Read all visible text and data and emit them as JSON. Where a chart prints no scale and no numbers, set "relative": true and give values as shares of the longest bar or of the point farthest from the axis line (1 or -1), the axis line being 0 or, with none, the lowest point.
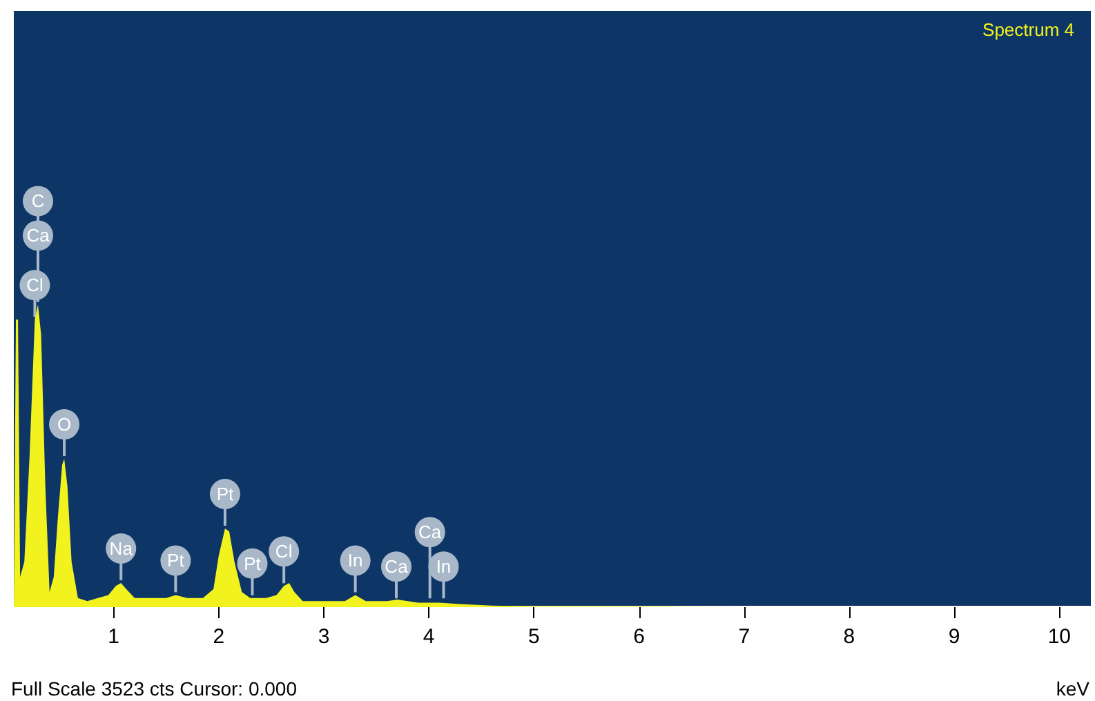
{
  "chart_data": {
    "type": "area",
    "title": "Spectrum 4",
    "xlabel": "keV",
    "relative": true,
    "color": "#f2f21e",
    "x": [
      0.05,
      0.07,
      0.09,
      0.11,
      0.15,
      0.2,
      0.25,
      0.28,
      0.31,
      0.35,
      0.39,
      0.43,
      0.47,
      0.51,
      0.53,
      0.56,
      0.6,
      0.66,
      0.75,
      0.85,
      0.95,
      1.02,
      1.07,
      1.12,
      1.2,
      1.35,
      1.5,
      1.59,
      1.7,
      1.85,
      1.95,
      2.0,
      2.06,
      2.1,
      2.15,
      2.22,
      2.3,
      2.45,
      2.55,
      2.62,
      2.67,
      2.72,
      2.8,
      3.0,
      3.2,
      3.3,
      3.4,
      3.6,
      3.7,
      3.9,
      4.1,
      4.3,
      4.6,
      5,
      6,
      7,
      10.3
    ],
    "values": [
      0,
      0.95,
      0.95,
      0.1,
      0.15,
      0.5,
      0.95,
      1.0,
      0.9,
      0.4,
      0.05,
      0.1,
      0.3,
      0.47,
      0.49,
      0.4,
      0.15,
      0.03,
      0.02,
      0.03,
      0.04,
      0.07,
      0.08,
      0.06,
      0.03,
      0.03,
      0.03,
      0.04,
      0.03,
      0.03,
      0.06,
      0.17,
      0.26,
      0.25,
      0.15,
      0.05,
      0.03,
      0.03,
      0.04,
      0.07,
      0.08,
      0.05,
      0.02,
      0.02,
      0.02,
      0.04,
      0.02,
      0.02,
      0.025,
      0.015,
      0.015,
      0.01,
      0.005,
      0.003,
      0.002,
      0,
      0
    ],
    "xlim": [
      0.05,
      10.3
    ],
    "xticks": [
      1,
      2,
      3,
      4,
      5,
      6,
      7,
      8,
      9,
      10
    ],
    "grid": false,
    "annotations": [
      "Full Scale 3523 cts Cursor: 0.000",
      {
        "text": "Cl",
        "x": 0.25,
        "y": 0.95
      },
      {
        "text": "Ca",
        "x": 0.28,
        "y": 1.0
      },
      {
        "text": "C",
        "x": 0.28,
        "y": 1.0
      },
      {
        "text": "O",
        "x": 0.53,
        "y": 0.49
      },
      {
        "text": "Na",
        "x": 1.07,
        "y": 0.08
      },
      {
        "text": "Pt",
        "x": 1.59,
        "y": 0.04
      },
      {
        "text": "Pt",
        "x": 2.06,
        "y": 0.26
      },
      {
        "text": "Pt",
        "x": 2.32,
        "y": 0.03
      },
      {
        "text": "Cl",
        "x": 2.62,
        "y": 0.07
      },
      {
        "text": "In",
        "x": 3.3,
        "y": 0.04
      },
      {
        "text": "Ca",
        "x": 3.69,
        "y": 0.02
      },
      {
        "text": "In",
        "x": 4.14,
        "y": 0.02
      },
      {
        "text": "Ca",
        "x": 4.01,
        "y": 0.02
      }
    ]
  }
}
